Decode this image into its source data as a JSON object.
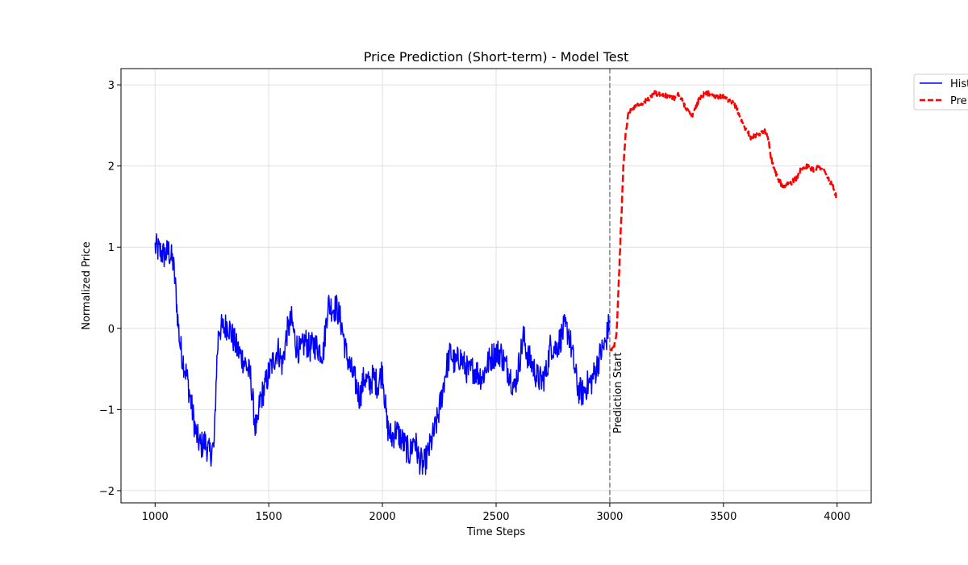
{
  "chart_data": {
    "type": "line",
    "title": "Price Prediction (Short-term) - Model Test",
    "xlabel": "Time Steps",
    "ylabel": "Normalized Price",
    "xlim": [
      850,
      4150
    ],
    "ylim": [
      -2.15,
      3.2
    ],
    "xticks": [
      1000,
      1500,
      2000,
      2500,
      3000,
      3500,
      4000
    ],
    "yticks": [
      -2,
      -1,
      0,
      1,
      2,
      3
    ],
    "grid": true,
    "legend_position": "top-right, outside plot",
    "prediction_start_x": 3000,
    "annotation": "Prediction Start",
    "series": [
      {
        "name": "Hist",
        "color": "#0000ff",
        "style": "solid",
        "x": [
          1000,
          1020,
          1040,
          1060,
          1080,
          1090,
          1100,
          1110,
          1120,
          1140,
          1160,
          1180,
          1200,
          1220,
          1240,
          1260,
          1270,
          1280,
          1300,
          1320,
          1340,
          1360,
          1380,
          1400,
          1420,
          1440,
          1450,
          1460,
          1480,
          1500,
          1520,
          1540,
          1560,
          1580,
          1600,
          1620,
          1640,
          1660,
          1680,
          1700,
          1720,
          1740,
          1760,
          1780,
          1800,
          1820,
          1840,
          1860,
          1880,
          1900,
          1920,
          1940,
          1960,
          1980,
          2000,
          2020,
          2040,
          2060,
          2080,
          2100,
          2120,
          2140,
          2160,
          2180,
          2200,
          2220,
          2240,
          2260,
          2280,
          2300,
          2320,
          2340,
          2360,
          2380,
          2400,
          2420,
          2440,
          2460,
          2480,
          2500,
          2520,
          2540,
          2560,
          2580,
          2600,
          2620,
          2640,
          2660,
          2680,
          2700,
          2720,
          2740,
          2760,
          2780,
          2800,
          2820,
          2840,
          2860,
          2880,
          2900,
          2920,
          2940,
          2960,
          2980,
          3000
        ],
        "y": [
          1.0,
          0.95,
          0.9,
          0.95,
          0.8,
          0.5,
          0.1,
          -0.2,
          -0.35,
          -0.6,
          -0.95,
          -1.3,
          -1.45,
          -1.4,
          -1.55,
          -1.45,
          -0.5,
          0.0,
          0.0,
          0.05,
          -0.1,
          -0.25,
          -0.35,
          -0.45,
          -0.6,
          -1.2,
          -1.25,
          -0.9,
          -0.75,
          -0.55,
          -0.4,
          -0.25,
          -0.45,
          -0.05,
          0.1,
          -0.2,
          -0.3,
          -0.15,
          -0.25,
          -0.2,
          -0.25,
          -0.3,
          0.3,
          0.25,
          0.25,
          0.05,
          -0.3,
          -0.5,
          -0.65,
          -0.85,
          -0.6,
          -0.7,
          -0.6,
          -0.7,
          -0.5,
          -1.2,
          -1.35,
          -1.25,
          -1.35,
          -1.45,
          -1.55,
          -1.35,
          -1.6,
          -1.7,
          -1.55,
          -1.35,
          -1.15,
          -0.85,
          -0.5,
          -0.3,
          -0.45,
          -0.35,
          -0.45,
          -0.55,
          -0.5,
          -0.55,
          -0.6,
          -0.45,
          -0.35,
          -0.3,
          -0.3,
          -0.45,
          -0.55,
          -0.75,
          -0.45,
          -0.1,
          -0.35,
          -0.45,
          -0.6,
          -0.65,
          -0.55,
          -0.2,
          -0.25,
          -0.15,
          0.0,
          -0.05,
          -0.4,
          -0.75,
          -0.8,
          -0.7,
          -0.65,
          -0.5,
          -0.3,
          -0.2,
          0.1
        ]
      },
      {
        "name": "Pre",
        "color": "#ff0000",
        "style": "dashed",
        "x": [
          3000,
          3010,
          3020,
          3030,
          3040,
          3050,
          3060,
          3070,
          3080,
          3100,
          3120,
          3150,
          3180,
          3200,
          3220,
          3250,
          3280,
          3300,
          3320,
          3340,
          3360,
          3380,
          3400,
          3420,
          3450,
          3480,
          3500,
          3520,
          3540,
          3560,
          3580,
          3600,
          3620,
          3640,
          3660,
          3680,
          3700,
          3710,
          3720,
          3740,
          3760,
          3780,
          3800,
          3820,
          3840,
          3860,
          3880,
          3900,
          3920,
          3940,
          3960,
          3980,
          4000
        ],
        "y": [
          -0.3,
          -0.25,
          -0.2,
          -0.05,
          0.6,
          1.3,
          2.0,
          2.4,
          2.62,
          2.72,
          2.75,
          2.78,
          2.85,
          2.9,
          2.88,
          2.86,
          2.83,
          2.88,
          2.8,
          2.7,
          2.6,
          2.75,
          2.85,
          2.9,
          2.88,
          2.85,
          2.85,
          2.8,
          2.78,
          2.7,
          2.55,
          2.45,
          2.35,
          2.38,
          2.4,
          2.45,
          2.3,
          2.1,
          2.0,
          1.85,
          1.75,
          1.78,
          1.8,
          1.85,
          1.95,
          2.0,
          1.98,
          1.95,
          2.0,
          1.95,
          1.85,
          1.75,
          1.6
        ]
      }
    ]
  }
}
